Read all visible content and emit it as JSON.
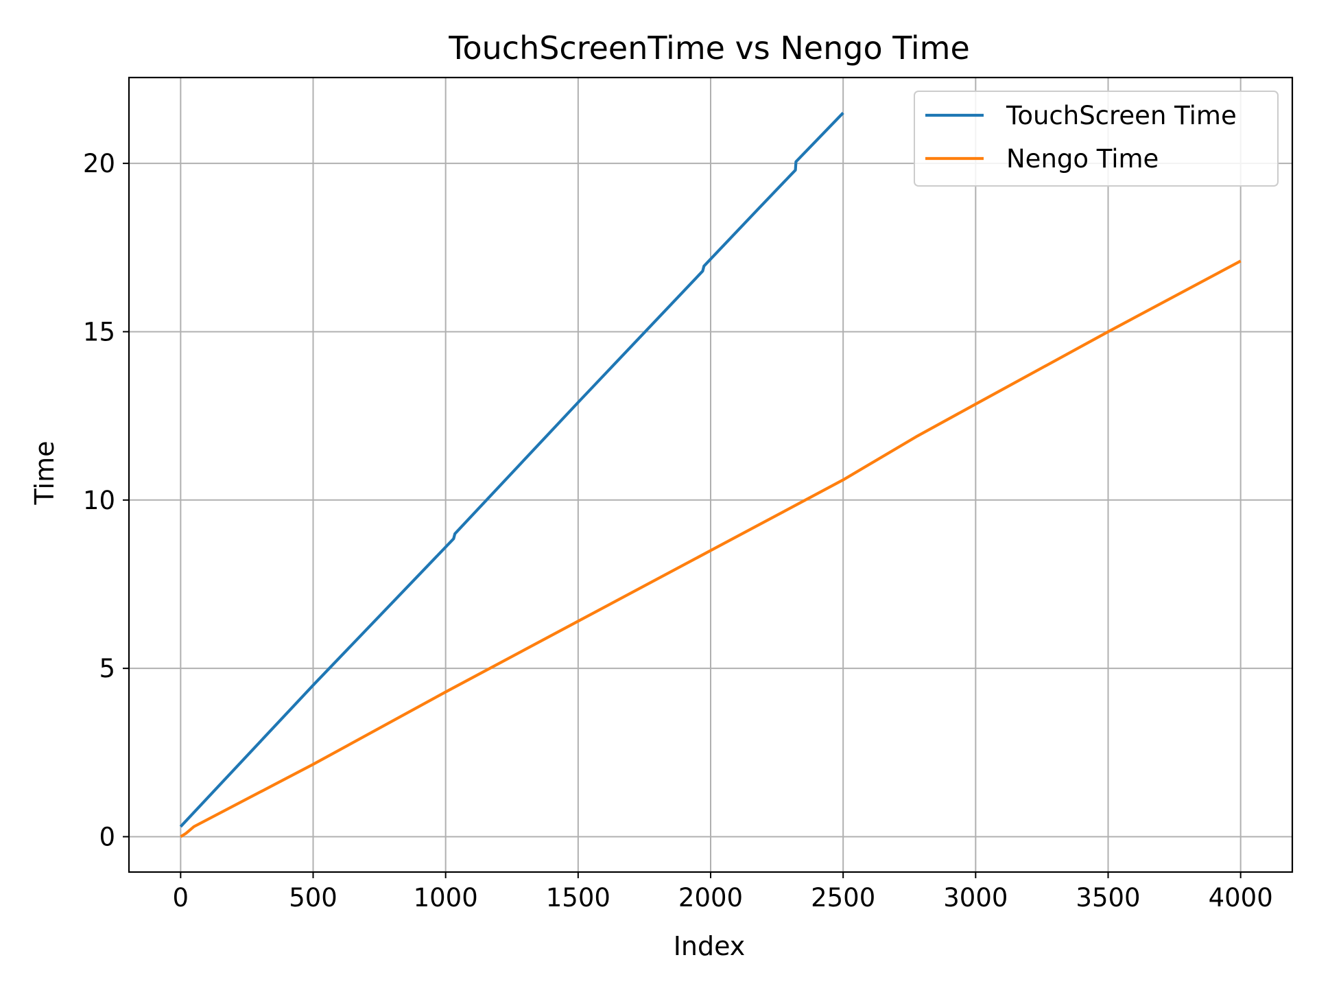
{
  "chart_data": {
    "type": "line",
    "title": "TouchScreenTime vs Nengo Time",
    "xlabel": "Index",
    "ylabel": "Time",
    "xlim": [
      -195,
      4195
    ],
    "ylim": [
      -1.05,
      22.55
    ],
    "xticks": [
      0,
      500,
      1000,
      1500,
      2000,
      2500,
      3000,
      3500,
      4000
    ],
    "yticks": [
      0,
      5,
      10,
      15,
      20
    ],
    "grid": true,
    "legend_position": "top-right",
    "series": [
      {
        "name": "TouchScreen Time",
        "color": "#1f77b4",
        "x": [
          0,
          500,
          1030,
          1035,
          1500,
          1970,
          1975,
          2180,
          2320,
          2322,
          2500
        ],
        "y": [
          0.3,
          4.5,
          8.85,
          9.0,
          12.9,
          16.8,
          16.95,
          18.65,
          19.8,
          20.05,
          21.5
        ]
      },
      {
        "name": "Nengo Time",
        "color": "#ff7f0e",
        "x": [
          0,
          20,
          50,
          500,
          1000,
          1500,
          2000,
          2500,
          2780,
          3000,
          3500,
          4000
        ],
        "y": [
          0.0,
          0.1,
          0.3,
          2.15,
          4.3,
          6.4,
          8.5,
          10.6,
          11.9,
          12.85,
          15.0,
          17.1
        ]
      }
    ]
  }
}
